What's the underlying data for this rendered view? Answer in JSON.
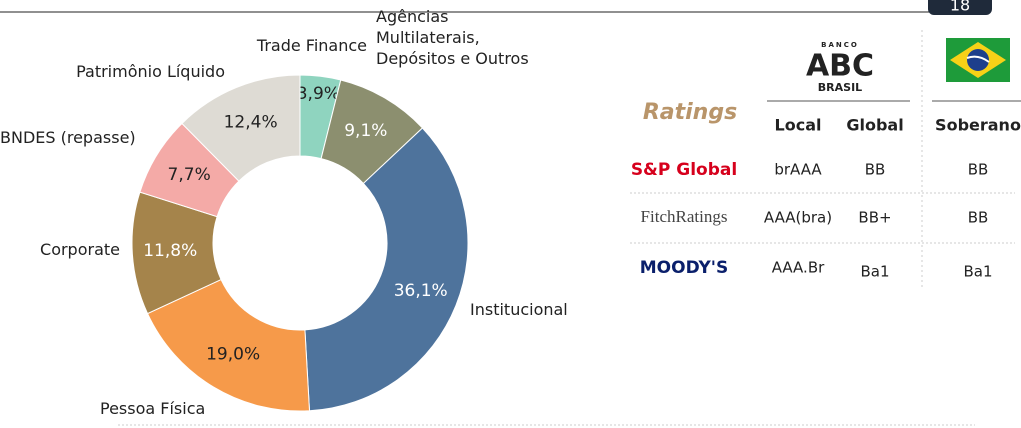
{
  "chart_data": {
    "type": "donut",
    "categories": [
      "Trade Finance",
      "Agências\nMultilaterais,\nDepósitos e Outros",
      "Institucional",
      "Pessoa Física",
      "Corporate",
      "BNDES (repasse)",
      "Patrimônio Líquido"
    ],
    "values": [
      3.9,
      9.1,
      36.1,
      19.0,
      11.8,
      7.7,
      12.4
    ],
    "value_labels": [
      "3,9%",
      "9,1%",
      "36,1%",
      "19,0%",
      "11,8%",
      "7,7%",
      "12,4%"
    ],
    "colors": [
      "#8fd4bf",
      "#8c8f6f",
      "#4e739c",
      "#f69a4a",
      "#a5844b",
      "#f4aaa7",
      "#dedbd4"
    ],
    "value_label_colors": [
      "#222222",
      "#ffffff",
      "#ffffff",
      "#222222",
      "#ffffff",
      "#222222",
      "#222222"
    ]
  },
  "header": {
    "page_number": "18"
  },
  "ratings": {
    "title": "Ratings",
    "issuer_logo": {
      "top": "BANCO",
      "name": "ABC",
      "bottom": "BRASIL"
    },
    "columns": [
      "Local",
      "Global",
      "Soberano"
    ],
    "rows": [
      {
        "agency": "S&P Global",
        "values": [
          "brAAA",
          "BB",
          "BB"
        ]
      },
      {
        "agency": "FitchRatings",
        "values": [
          "AAA(bra)",
          "BB+",
          "BB"
        ]
      },
      {
        "agency": "MOODY'S",
        "values": [
          "AAA.Br",
          "Ba1",
          "Ba1"
        ]
      }
    ]
  }
}
